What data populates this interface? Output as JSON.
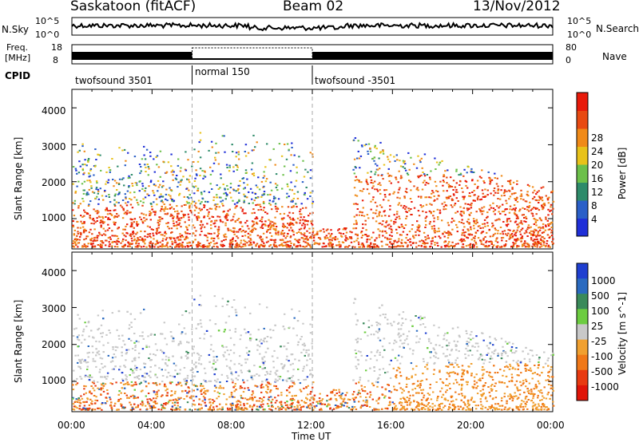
{
  "header": {
    "station": "Saskatoon (fitACF)",
    "beam": "Beam 02",
    "date": "13/Nov/2012"
  },
  "noise_panel": {
    "left_label": "N.Sky",
    "right_label": "N.Search",
    "left_ticks": [
      "10^5",
      "10^0"
    ],
    "right_ticks": [
      "10^5",
      "10^0"
    ]
  },
  "freq_panel": {
    "left_label_1": "Freq.",
    "left_label_2": "[MHz]",
    "right_label": "Nave",
    "left_ticks": [
      "18",
      "8"
    ],
    "right_ticks": [
      "80",
      "0"
    ]
  },
  "cpid_panel": {
    "label": "CPID",
    "segments": [
      {
        "name": "twofsound 3501",
        "start_hour": 0,
        "end_hour": 6
      },
      {
        "name": "normal 150",
        "start_hour": 6,
        "end_hour": 12
      },
      {
        "name": "twofsound -3501",
        "start_hour": 12,
        "end_hour": 24
      }
    ]
  },
  "x_axis": {
    "label": "Time UT",
    "ticks": [
      "00:00",
      "04:00",
      "08:00",
      "12:00",
      "16:00",
      "20:00",
      "00:00"
    ]
  },
  "chart_data": [
    {
      "type": "heatmap",
      "ylabel": "Slant Range [km]",
      "yticks": [
        "1000",
        "2000",
        "3000",
        "4000"
      ],
      "ylim": [
        180,
        4500
      ],
      "xlim": [
        0,
        24
      ],
      "colorbar": {
        "label": "Power [dB]",
        "ticks": [
          "4",
          "8",
          "12",
          "16",
          "20",
          "24",
          "28"
        ],
        "range": [
          0,
          30
        ],
        "colors": [
          "#1f2fd8",
          "#2a5fc8",
          "#2e8b6a",
          "#6cc04a",
          "#e8c21a",
          "#f08a18",
          "#e84a12",
          "#e81a0a"
        ]
      }
    },
    {
      "type": "heatmap",
      "ylabel": "Slant Range [km]",
      "yticks": [
        "1000",
        "2000",
        "3000",
        "4000"
      ],
      "ylim": [
        180,
        4500
      ],
      "xlim": [
        0,
        24
      ],
      "colorbar": {
        "label": "Velocity [m s^-1]",
        "ticks": [
          "1000",
          "500",
          "100",
          "25",
          "-25",
          "-100",
          "-500",
          "-1000"
        ],
        "colors": [
          "#1f3fd0",
          "#2a6ac0",
          "#3a8a5a",
          "#6ccc40",
          "#c8c8c8",
          "#f0a030",
          "#f07818",
          "#e83a10",
          "#e01408"
        ]
      }
    }
  ]
}
